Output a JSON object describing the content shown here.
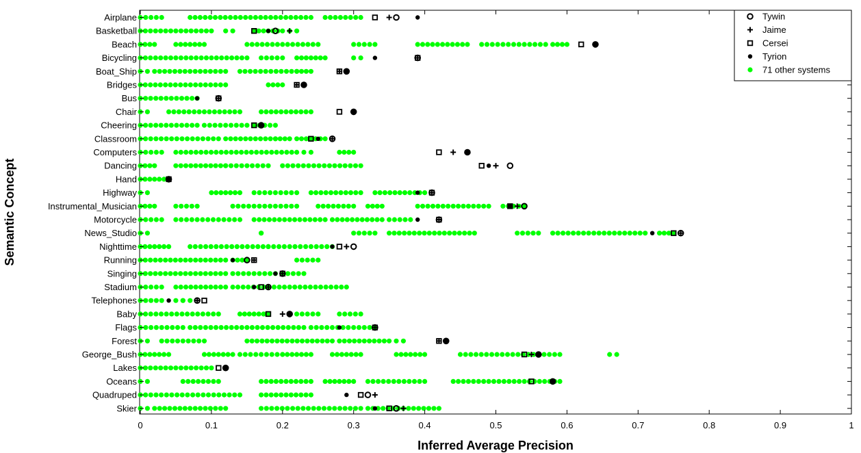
{
  "chart_data": {
    "type": "scatter",
    "title": "",
    "xlabel": "Inferred Average Precision",
    "ylabel": "Semantic Concept",
    "xlim": [
      0,
      1
    ],
    "xticks": [
      "0",
      "0.1",
      "0.2",
      "0.3",
      "0.4",
      "0.5",
      "0.6",
      "0.7",
      "0.8",
      "0.9",
      "1"
    ],
    "grid": false,
    "legend_position": "top-right",
    "categories": [
      "Airplane",
      "Basketball",
      "Beach",
      "Bicycling",
      "Boat_Ship",
      "Bridges",
      "Bus",
      "Chair",
      "Cheering",
      "Classroom",
      "Computers",
      "Dancing",
      "Hand",
      "Highway",
      "Instrumental_Musician",
      "Motorcycle",
      "News_Studio",
      "Nighttime",
      "Running",
      "Singing",
      "Stadium",
      "Telephones",
      "Baby",
      "Flags",
      "Forest",
      "George_Bush",
      "Lakes",
      "Oceans",
      "Quadruped",
      "Skier"
    ],
    "other_ranges": [
      [
        [
          0.0,
          0.03
        ],
        [
          0.07,
          0.24
        ],
        [
          0.26,
          0.31
        ]
      ],
      [
        [
          0.0,
          0.1
        ],
        [
          0.12,
          0.13
        ],
        [
          0.16,
          0.2
        ],
        [
          0.21,
          0.22
        ]
      ],
      [
        [
          0.0,
          0.02
        ],
        [
          0.05,
          0.09
        ],
        [
          0.15,
          0.25
        ],
        [
          0.3,
          0.33
        ],
        [
          0.39,
          0.46
        ],
        [
          0.48,
          0.57
        ],
        [
          0.58,
          0.6
        ]
      ],
      [
        [
          0.0,
          0.15
        ],
        [
          0.17,
          0.2
        ],
        [
          0.22,
          0.26
        ],
        [
          0.3,
          0.31
        ]
      ],
      [
        [
          0.0,
          0.01
        ],
        [
          0.02,
          0.12
        ],
        [
          0.14,
          0.22
        ],
        [
          0.22,
          0.24
        ]
      ],
      [
        [
          0.0,
          0.12
        ],
        [
          0.18,
          0.2
        ]
      ],
      [
        [
          0.0,
          0.08
        ]
      ],
      [
        [
          0.0,
          0.01
        ],
        [
          0.04,
          0.14
        ],
        [
          0.17,
          0.24
        ]
      ],
      [
        [
          0.0,
          0.08
        ],
        [
          0.09,
          0.15
        ],
        [
          0.16,
          0.19
        ]
      ],
      [
        [
          0.0,
          0.11
        ],
        [
          0.12,
          0.19
        ],
        [
          0.19,
          0.21
        ],
        [
          0.22,
          0.26
        ]
      ],
      [
        [
          0.0,
          0.03
        ],
        [
          0.05,
          0.22
        ],
        [
          0.23,
          0.24
        ],
        [
          0.28,
          0.3
        ]
      ],
      [
        [
          0.0,
          0.02
        ],
        [
          0.05,
          0.12
        ],
        [
          0.12,
          0.18
        ],
        [
          0.2,
          0.31
        ]
      ],
      [
        [
          0.0,
          0.04
        ]
      ],
      [
        [
          0.0,
          0.01
        ],
        [
          0.1,
          0.14
        ],
        [
          0.16,
          0.22
        ],
        [
          0.24,
          0.31
        ],
        [
          0.33,
          0.4
        ]
      ],
      [
        [
          0.0,
          0.02
        ],
        [
          0.05,
          0.08
        ],
        [
          0.13,
          0.22
        ],
        [
          0.25,
          0.3
        ],
        [
          0.32,
          0.34
        ],
        [
          0.39,
          0.49
        ],
        [
          0.51,
          0.54
        ]
      ],
      [
        [
          0.0,
          0.03
        ],
        [
          0.05,
          0.14
        ],
        [
          0.16,
          0.26
        ],
        [
          0.27,
          0.34
        ],
        [
          0.35,
          0.38
        ]
      ],
      [
        [
          0.0,
          0.01
        ],
        [
          0.17,
          0.17
        ],
        [
          0.3,
          0.33
        ],
        [
          0.35,
          0.47
        ],
        [
          0.53,
          0.56
        ],
        [
          0.58,
          0.71
        ],
        [
          0.73,
          0.75
        ]
      ],
      [
        [
          0.0,
          0.04
        ],
        [
          0.07,
          0.18
        ],
        [
          0.18,
          0.27
        ]
      ],
      [
        [
          0.0,
          0.12
        ],
        [
          0.13,
          0.15
        ],
        [
          0.22,
          0.25
        ]
      ],
      [
        [
          0.0,
          0.12
        ],
        [
          0.13,
          0.19
        ],
        [
          0.2,
          0.23
        ]
      ],
      [
        [
          0.0,
          0.03
        ],
        [
          0.05,
          0.12
        ],
        [
          0.13,
          0.29
        ]
      ],
      [
        [
          0.0,
          0.03
        ],
        [
          0.05,
          0.06
        ],
        [
          0.06,
          0.07
        ]
      ],
      [
        [
          0.0,
          0.11
        ],
        [
          0.14,
          0.18
        ],
        [
          0.22,
          0.25
        ],
        [
          0.28,
          0.31
        ]
      ],
      [
        [
          0.0,
          0.06
        ],
        [
          0.07,
          0.23
        ],
        [
          0.24,
          0.33
        ]
      ],
      [
        [
          0.0,
          0.01
        ],
        [
          0.03,
          0.09
        ],
        [
          0.15,
          0.27
        ],
        [
          0.28,
          0.35
        ],
        [
          0.36,
          0.37
        ]
      ],
      [
        [
          0.0,
          0.04
        ],
        [
          0.09,
          0.13
        ],
        [
          0.14,
          0.2
        ],
        [
          0.2,
          0.24
        ],
        [
          0.27,
          0.31
        ],
        [
          0.36,
          0.4
        ],
        [
          0.45,
          0.59
        ],
        [
          0.66,
          0.67
        ]
      ],
      [
        [
          0.0,
          0.1
        ]
      ],
      [
        [
          0.0,
          0.01
        ],
        [
          0.06,
          0.11
        ],
        [
          0.17,
          0.24
        ],
        [
          0.26,
          0.3
        ],
        [
          0.32,
          0.4
        ],
        [
          0.44,
          0.59
        ]
      ],
      [
        [
          0.0,
          0.14
        ],
        [
          0.17,
          0.24
        ]
      ],
      [
        [
          0.0,
          0.01
        ],
        [
          0.02,
          0.12
        ],
        [
          0.17,
          0.31
        ],
        [
          0.32,
          0.42
        ]
      ]
    ],
    "series": [
      {
        "name": "Tywin",
        "marker": "open-circle",
        "values": [
          0.36,
          0.19,
          0.64,
          0.39,
          0.29,
          0.23,
          0.11,
          0.3,
          0.17,
          0.27,
          0.46,
          0.52,
          0.04,
          0.41,
          0.54,
          0.42,
          0.76,
          0.3,
          0.15,
          0.2,
          0.18,
          0.08,
          0.21,
          0.33,
          0.43,
          0.56,
          0.12,
          0.58,
          0.32,
          0.36
        ]
      },
      {
        "name": "Jaime",
        "marker": "plus",
        "values": [
          0.35,
          0.21,
          0.64,
          0.39,
          0.28,
          0.22,
          0.11,
          0.3,
          0.17,
          0.27,
          0.44,
          0.5,
          0.04,
          0.41,
          0.53,
          0.42,
          0.76,
          0.29,
          0.16,
          0.2,
          0.18,
          0.08,
          0.2,
          0.33,
          0.42,
          0.55,
          0.12,
          0.58,
          0.33,
          0.37
        ]
      },
      {
        "name": "Cersei",
        "marker": "open-square",
        "values": [
          0.33,
          0.16,
          0.62,
          0.39,
          0.28,
          0.22,
          0.11,
          0.28,
          0.16,
          0.24,
          0.42,
          0.48,
          0.04,
          0.41,
          0.52,
          0.42,
          0.75,
          0.28,
          0.16,
          0.2,
          0.17,
          0.09,
          0.18,
          0.33,
          0.42,
          0.54,
          0.11,
          0.55,
          0.31,
          0.35
        ]
      },
      {
        "name": "Tyrion",
        "marker": "filled-circle",
        "values": [
          0.39,
          0.18,
          0.64,
          0.33,
          0.29,
          0.23,
          0.08,
          0.3,
          0.17,
          0.25,
          0.46,
          0.49,
          0.04,
          0.39,
          0.52,
          0.39,
          0.72,
          0.27,
          0.13,
          0.19,
          0.16,
          0.04,
          0.21,
          0.28,
          0.43,
          0.56,
          0.12,
          0.58,
          0.29,
          0.33
        ]
      },
      {
        "name": "71 other systems",
        "marker": "green-dot",
        "color": "#00ff00"
      }
    ]
  }
}
